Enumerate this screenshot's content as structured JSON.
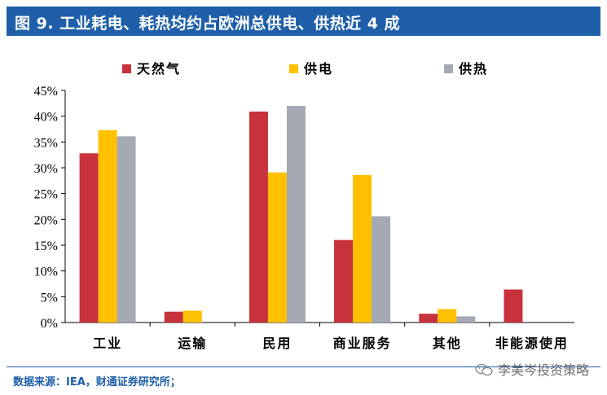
{
  "header": {
    "title": "图 9. 工业耗电、耗热均约占欧洲总供电、供热近 4 成"
  },
  "footer": {
    "source": "数据来源：IEA，财通证券研究所；",
    "watermark": "李美岑投资策略",
    "watermark_icon": "wechat-icon"
  },
  "colors": {
    "brand": "#1f5fa9",
    "series": [
      "#c8323c",
      "#ffc000",
      "#a5a9b4"
    ]
  },
  "chart_data": {
    "type": "bar",
    "title": "",
    "xlabel": "",
    "ylabel": "",
    "ylim": [
      0,
      45
    ],
    "yticks": [
      "0%",
      "5%",
      "10%",
      "15%",
      "20%",
      "25%",
      "30%",
      "35%",
      "40%",
      "45%"
    ],
    "legend_position": "top",
    "grid": false,
    "categories": [
      "工业",
      "运输",
      "民用",
      "商业服务",
      "其他",
      "非能源使用"
    ],
    "series": [
      {
        "name": "天然气",
        "values": [
          32.8,
          2.1,
          40.9,
          16.0,
          1.7,
          6.4
        ]
      },
      {
        "name": "供电",
        "values": [
          37.3,
          2.3,
          29.1,
          28.6,
          2.6,
          0
        ]
      },
      {
        "name": "供热",
        "values": [
          36.1,
          0,
          42.0,
          20.6,
          1.2,
          0
        ]
      }
    ]
  }
}
